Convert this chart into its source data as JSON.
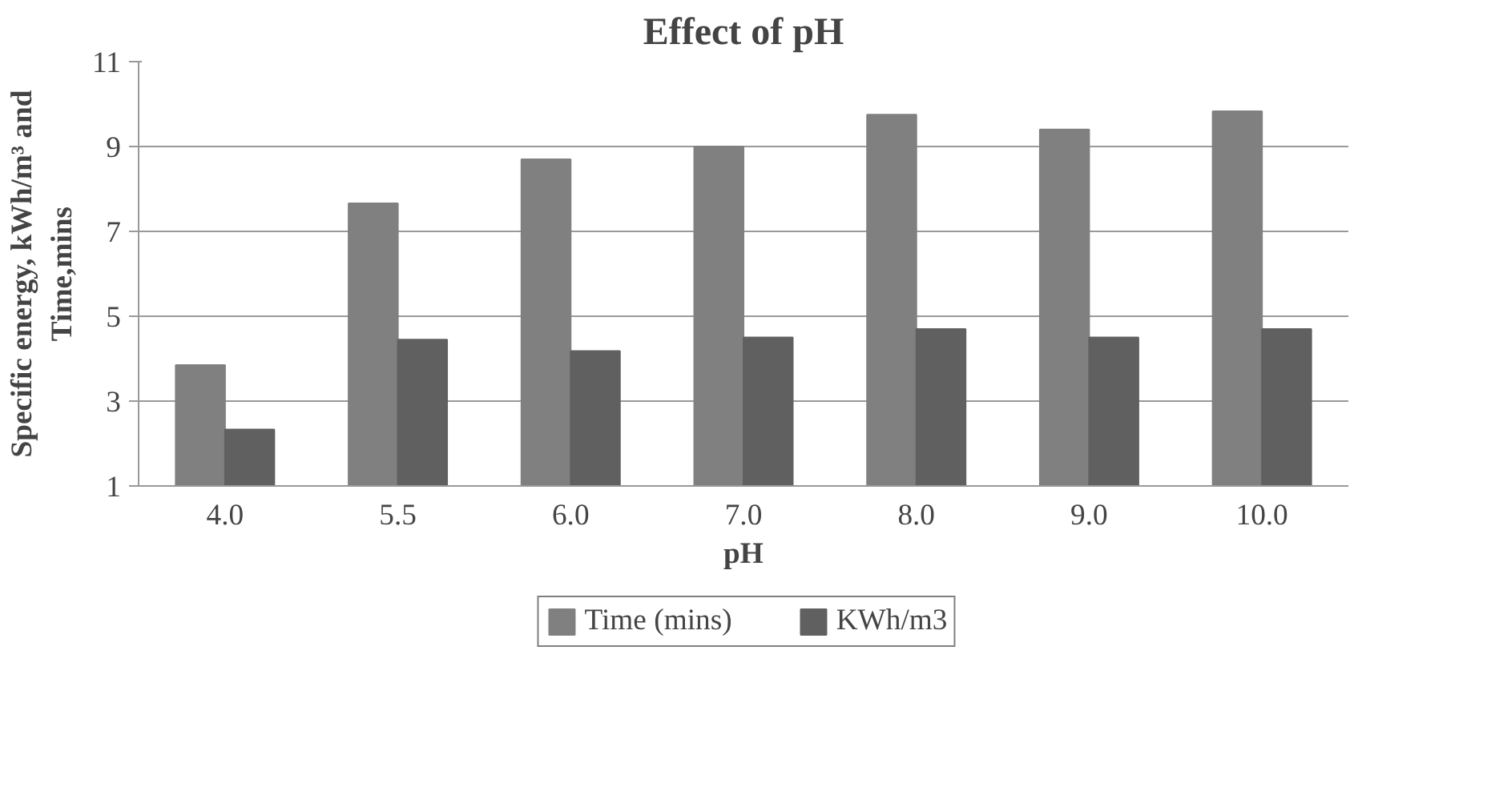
{
  "chart_data": {
    "type": "bar",
    "title": "Effect of pH",
    "xlabel": "pH",
    "ylabel": "Specific energy, kWh/m³ and\nTime,mins",
    "categories": [
      "4.0",
      "5.5",
      "6.0",
      "7.0",
      "8.0",
      "9.0",
      "10.0"
    ],
    "series": [
      {
        "name": "Time (mins)",
        "color": "#808080",
        "values": [
          3.85,
          7.66,
          8.7,
          9.0,
          9.75,
          9.4,
          9.83
        ]
      },
      {
        "name": "KWh/m3",
        "color": "#606060",
        "values": [
          2.33,
          4.45,
          4.18,
          4.5,
          4.7,
          4.5,
          4.7
        ]
      }
    ],
    "ylim": [
      1,
      11
    ],
    "yticks": [
      1,
      3,
      5,
      7,
      9,
      11
    ],
    "grid": "y",
    "legend": "bottom"
  }
}
